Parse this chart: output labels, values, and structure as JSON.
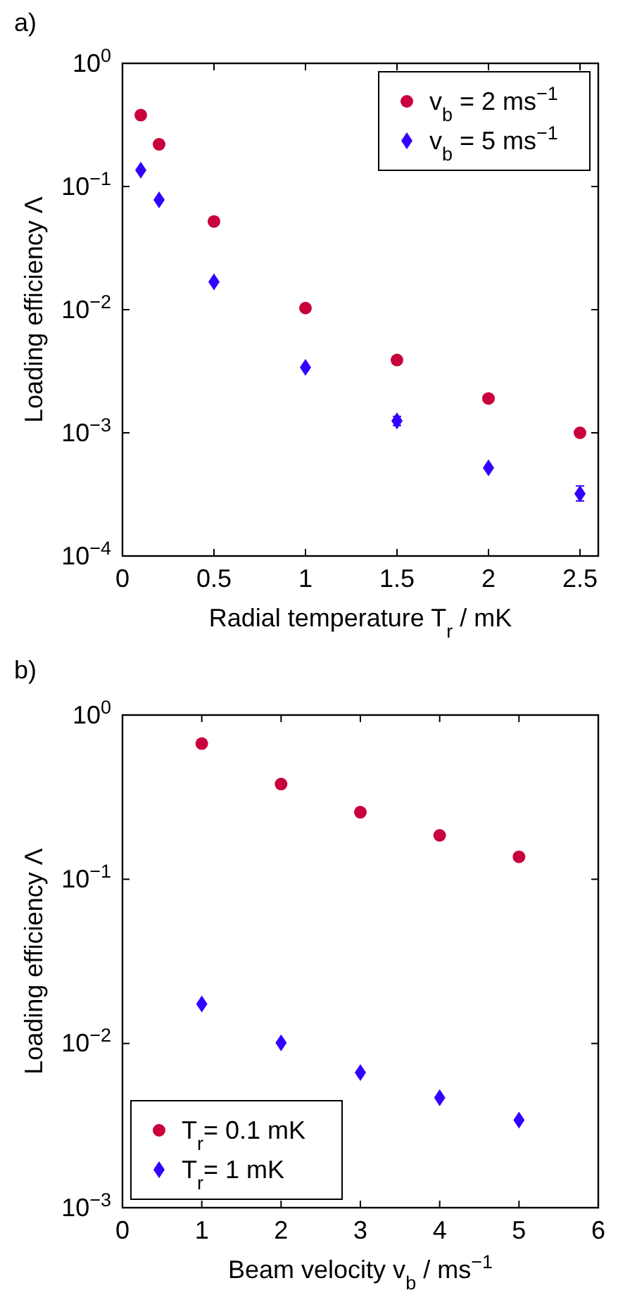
{
  "chart_data": [
    {
      "type": "scatter",
      "title": "a)",
      "xlabel": "Radial temperature T$_{r}$ / mK",
      "ylabel": "Loading efficiency Λ",
      "log": "y",
      "grid": false,
      "legend": "top right",
      "xlim": [
        0,
        2.6
      ],
      "xticks": [
        0,
        0.5,
        1,
        1.5,
        2,
        2.5
      ],
      "ylim": [
        0.0001,
        1
      ],
      "yticks": [
        {
          "value": 0.0001,
          "label": "10$^{−4}$"
        },
        {
          "value": 0.001,
          "label": "10$^{−3}$"
        },
        {
          "value": 0.01,
          "label": "10$^{−2}$"
        },
        {
          "value": 0.1,
          "label": "10$^{−1}$"
        },
        {
          "value": 1,
          "label": "10$^{0}$"
        }
      ],
      "x": [
        0.1,
        0.2,
        0.5,
        1,
        1.5,
        2,
        2.5
      ],
      "series": [
        {
          "name": "v$_{b}$ = 2 ms$^{−1}$",
          "color": "#c8003c",
          "marker": "circle",
          "values": [
            0.38,
            0.22,
            0.052,
            0.0103,
            0.0039,
            0.0019,
            0.001
          ]
        },
        {
          "name": "v$_{b}$ = 5 ms$^{−1}$",
          "color": "#3300ff",
          "marker": "diamond",
          "values": [
            0.136,
            0.078,
            0.0168,
            0.0034,
            0.00125,
            0.00052,
            0.00032
          ],
          "errors": [
            null,
            null,
            null,
            null,
            [
              0.00115,
              0.00136
            ],
            null,
            [
              0.00028,
              0.00037
            ]
          ]
        }
      ]
    },
    {
      "type": "scatter",
      "title": "b)",
      "xlabel": "Beam velocity  v$_{b}$ / ms$^{−1}$",
      "ylabel": "Loading efficiency Λ",
      "log": "y",
      "grid": false,
      "legend": "bottom left",
      "xlim": [
        0,
        6
      ],
      "xticks": [
        0,
        1,
        2,
        3,
        4,
        5,
        6
      ],
      "ylim": [
        0.001,
        1
      ],
      "yticks": [
        {
          "value": 0.001,
          "label": "10$^{−3}$"
        },
        {
          "value": 0.01,
          "label": "10$^{−2}$"
        },
        {
          "value": 0.1,
          "label": "10$^{−1}$"
        },
        {
          "value": 1,
          "label": "10$^{0}$"
        }
      ],
      "x": [
        1,
        2,
        3,
        4,
        5
      ],
      "series": [
        {
          "name": "T$_{r}$= 0.1 mK",
          "color": "#c8003c",
          "marker": "circle",
          "values": [
            0.67,
            0.38,
            0.256,
            0.185,
            0.137
          ]
        },
        {
          "name": "T$_{r}$= 1 mK",
          "color": "#3300ff",
          "marker": "diamond",
          "values": [
            0.0174,
            0.0101,
            0.00665,
            0.00467,
            0.00342
          ]
        }
      ]
    }
  ]
}
